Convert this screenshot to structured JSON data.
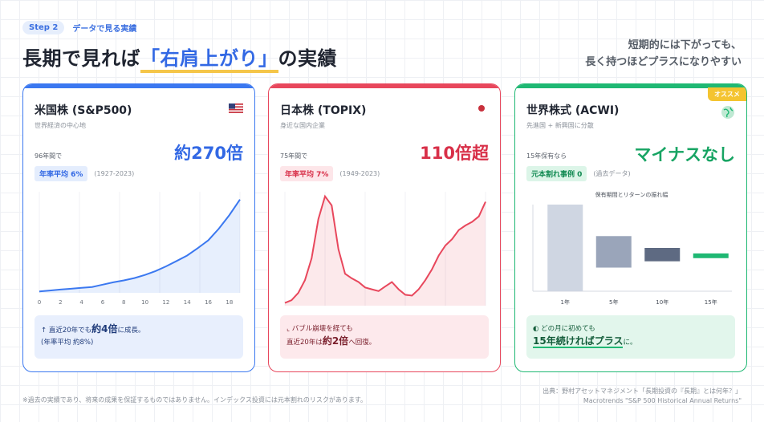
{
  "header": {
    "step_label": "Step 2",
    "step_text": "データで見る実績",
    "title_before": "長期で見れば",
    "title_highlight": "「右肩上がり」",
    "title_after": "の実績",
    "subcopy_line1": "短期的には下がっても、",
    "subcopy_line2": "長く持つほどプラスになりやすい"
  },
  "cards": [
    {
      "title": "米国株 (S&P500)",
      "subtitle": "世界経済の中心地",
      "period": "96年間で",
      "big_value": "約270倍",
      "avg_label": "年率平均 6%",
      "avg_range": "(1927-2023)",
      "note_line1_prefix": "↑ 直近20年でも",
      "note_line1_bold": "約4倍",
      "note_line1_suffix": "に成長。",
      "note_line2": "(年率平均 約8%)",
      "accent": "#3b78f0",
      "icon": "us-flag-icon"
    },
    {
      "title": "日本株 (TOPIX)",
      "subtitle": "身近な国内企業",
      "period": "75年間で",
      "big_value": "110倍超",
      "avg_label": "年率平均 7%",
      "avg_range": "(1949-2023)",
      "note_line1_prefix": "バブル崩壊を経ても",
      "note_line2_prefix": "直近20年は",
      "note_line2_bold": "約2倍",
      "note_line2_suffix": "へ回復。",
      "accent": "#e8475c",
      "icon": "japan-flag-icon"
    },
    {
      "title": "世界株式 (ACWI)",
      "subtitle": "先進国 + 新興国に分散",
      "period": "15年保有なら",
      "big_value": "マイナスなし",
      "avg_label": "元本割れ事例 0",
      "avg_range": "(過去データ)",
      "badge": "オススメ",
      "note_line1": "どの月に初めても",
      "note_line2_bold": "15年続ければプラス",
      "note_line2_suffix": "に。",
      "accent": "#1fb873",
      "icon": "globe-icon"
    }
  ],
  "chart_data": [
    {
      "type": "area",
      "title": "",
      "x": [
        0,
        1,
        2,
        3,
        4,
        5,
        6,
        7,
        8,
        9,
        10,
        11,
        12,
        13,
        14,
        15,
        16,
        17,
        18,
        19
      ],
      "y": [
        3.5,
        6,
        8.5,
        10.5,
        13,
        15,
        21,
        27,
        32,
        38,
        46,
        56,
        68,
        82,
        96,
        115,
        135,
        165,
        200,
        240
      ],
      "xticks": [
        "0",
        "2",
        "4",
        "6",
        "8",
        "10",
        "12",
        "14",
        "16",
        "18"
      ],
      "ylim": [
        0,
        260
      ],
      "color": "#3b78f0"
    },
    {
      "type": "area",
      "title": "",
      "x": [
        0,
        1,
        2,
        3,
        4,
        5,
        6,
        7,
        8,
        9,
        10,
        11,
        12,
        13,
        14,
        15,
        16,
        17,
        18,
        19,
        20,
        21,
        22,
        23,
        24,
        25,
        26,
        27,
        28,
        29,
        30
      ],
      "y": [
        3,
        6,
        14,
        28,
        52,
        95,
        120,
        110,
        62,
        35,
        30,
        26,
        20,
        18,
        16,
        21,
        26,
        18,
        12,
        11,
        18,
        28,
        40,
        55,
        66,
        73,
        83,
        88,
        92,
        98,
        114
      ],
      "ylim": [
        0,
        125
      ],
      "color": "#e8475c"
    },
    {
      "type": "bar",
      "title": "保有期間とリターンの振れ幅",
      "categories": [
        "1年",
        "5年",
        "10年",
        "15年"
      ],
      "ranges": [
        [
          -40,
          70
        ],
        [
          -10,
          30
        ],
        [
          -2,
          15
        ],
        [
          2,
          8
        ]
      ],
      "colors": [
        "#cfd6e2",
        "#9aa5ba",
        "#5e6a82",
        "#1fb873"
      ]
    }
  ],
  "footer": {
    "disclaimer": "※過去の実績であり、将来の成果を保証するものではありません。インデックス投資には元本割れのリスクがあります。",
    "source_line1": "出典：野村アセットマネジメント「長期投資の『長期』とは何年？」",
    "source_line2": "Macrotrends \"S&P 500 Historical Annual Returns\""
  }
}
